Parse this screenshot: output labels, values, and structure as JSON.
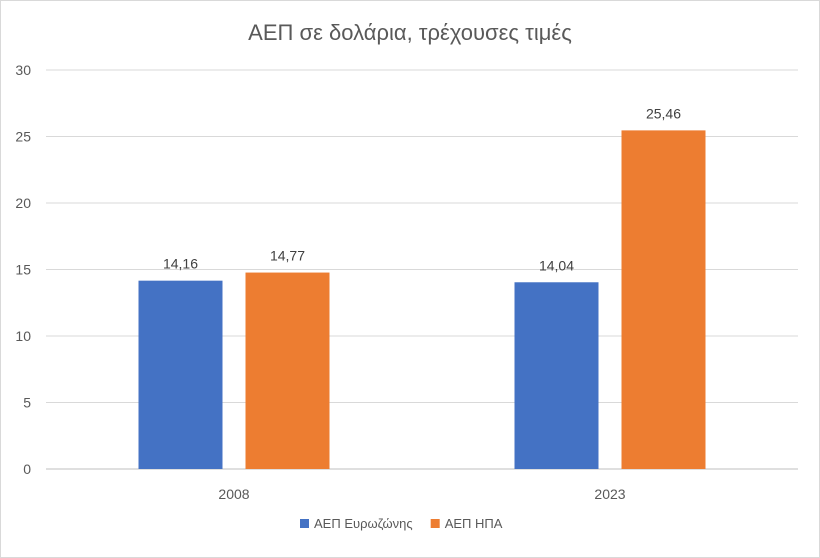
{
  "chart_data": {
    "type": "bar",
    "title": "ΑΕΠ σε δολάρια, τρέχουσες τιμές",
    "xlabel": "",
    "ylabel": "",
    "categories": [
      "2008",
      "2023"
    ],
    "series": [
      {
        "name": "ΑΕΠ Ευρωζώνης",
        "values": [
          14.16,
          14.04
        ],
        "labels": [
          "14,16",
          "14,04"
        ],
        "color": "#4472C4"
      },
      {
        "name": "ΑΕΠ ΗΠΑ",
        "values": [
          14.77,
          25.46
        ],
        "labels": [
          "14,77",
          "25,46"
        ],
        "color": "#ED7D31"
      }
    ],
    "ylim": [
      0,
      30
    ],
    "yticks": [
      "0",
      "5",
      "10",
      "15",
      "20",
      "25",
      "30"
    ],
    "grid": true,
    "legend_position": "bottom",
    "colors": {
      "gridline": "#d9d9d9",
      "axis": "#bfbfbf"
    }
  }
}
